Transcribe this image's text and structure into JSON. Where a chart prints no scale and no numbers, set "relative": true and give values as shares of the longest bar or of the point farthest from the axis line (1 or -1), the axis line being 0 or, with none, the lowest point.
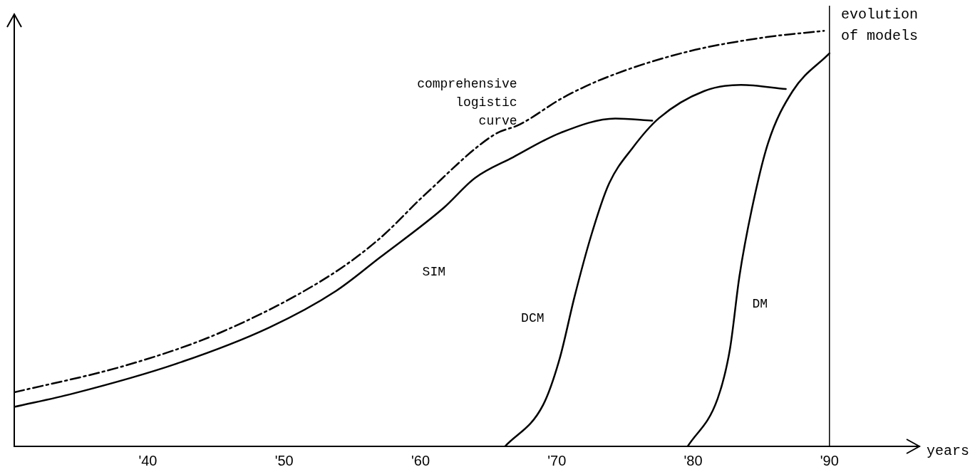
{
  "chart_data": {
    "type": "line",
    "relative": true,
    "xlabel": "years",
    "ylabel": "evolution of models",
    "xlim": [
      1930.2,
      1996.6
    ],
    "xticks": [
      {
        "value": 1940,
        "label": "'40"
      },
      {
        "value": 1950,
        "label": "'50"
      },
      {
        "value": 1960,
        "label": "'60"
      },
      {
        "value": 1970,
        "label": "'70"
      },
      {
        "value": 1980,
        "label": "'80"
      },
      {
        "value": 1990,
        "label": "'90"
      }
    ],
    "marker": "none",
    "ref_lines": [
      {
        "axis": "x",
        "value": 1990
      }
    ],
    "series": [
      {
        "name": "comprehensive logistic curve",
        "color": "#000000",
        "line_style": "dashed",
        "x": [
          1930.2,
          1938.4,
          1945.4,
          1953.3,
          1957.0,
          1960.3,
          1965.4,
          1967.3,
          1970.5,
          1973.8,
          1979.6,
          1985.4,
          1989.6
        ],
        "values": [
          0.13,
          0.195,
          0.275,
          0.41,
          0.5,
          0.605,
          0.75,
          0.775,
          0.84,
          0.89,
          0.95,
          0.985,
          1.0
        ]
      },
      {
        "name": "SIM",
        "color": "#000000",
        "line_style": "solid",
        "x": [
          1930.2,
          1934.5,
          1942.1,
          1948.9,
          1953.8,
          1957.0,
          1961.7,
          1964.0,
          1966.8,
          1970.3,
          1974.3,
          1977.0
        ],
        "values": [
          0.095,
          0.127,
          0.199,
          0.286,
          0.374,
          0.454,
          0.574,
          0.646,
          0.696,
          0.755,
          0.789,
          0.784
        ]
      },
      {
        "name": "DCM",
        "color": "#000000",
        "line_style": "solid",
        "x": [
          1966.2,
          1969.0,
          1970.2,
          1971.3,
          1972.5,
          1973.8,
          1975.6,
          1977.5,
          1980.8,
          1983.5,
          1986.8
        ],
        "values": [
          0,
          0.1,
          0.21,
          0.36,
          0.505,
          0.63,
          0.72,
          0.79,
          0.855,
          0.87,
          0.86
        ]
      },
      {
        "name": "DM",
        "color": "#000000",
        "line_style": "solid",
        "x": [
          1979.6,
          1981.8,
          1982.7,
          1983.4,
          1984.3,
          1985.5,
          1987.3,
          1990.0
        ],
        "values": [
          0,
          0.115,
          0.234,
          0.41,
          0.57,
          0.73,
          0.855,
          0.946
        ]
      }
    ]
  }
}
